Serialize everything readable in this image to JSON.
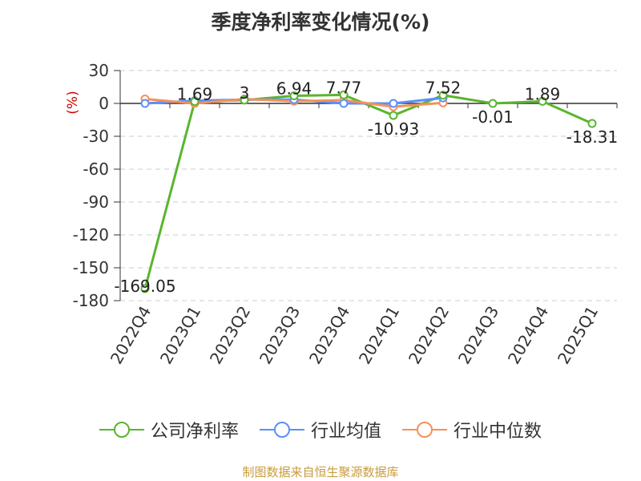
{
  "title": "季度净利率变化情况(%)",
  "source": "制图数据来自恒生聚源数据库",
  "chart_data": {
    "type": "line",
    "title": "季度净利率变化情况(%)",
    "ylabel": "(%)",
    "categories": [
      "2022Q4",
      "2023Q1",
      "2023Q2",
      "2023Q3",
      "2023Q4",
      "2024Q1",
      "2024Q2",
      "2024Q3",
      "2024Q4",
      "2025Q1"
    ],
    "ylim": [
      -180,
      30
    ],
    "yticks": [
      30,
      0,
      -30,
      -60,
      -90,
      -120,
      -150,
      -180
    ],
    "grid": true,
    "legend_position": "bottom",
    "series": [
      {
        "name": "公司净利率",
        "color": "#5ab52e",
        "labels": true,
        "values": [
          -169.05,
          1.69,
          3,
          6.94,
          7.77,
          -10.93,
          7.52,
          -0.01,
          1.89,
          -18.31
        ]
      },
      {
        "name": "行业均值",
        "color": "#5b8ff9",
        "labels": false,
        "values": [
          0,
          2.5,
          3.5,
          3.5,
          0,
          0,
          5,
          null,
          null,
          null
        ]
      },
      {
        "name": "行业中位数",
        "color": "#f5905a",
        "labels": false,
        "values": [
          4,
          0,
          4,
          2,
          3,
          -3,
          0.5,
          null,
          null,
          null
        ]
      }
    ]
  }
}
